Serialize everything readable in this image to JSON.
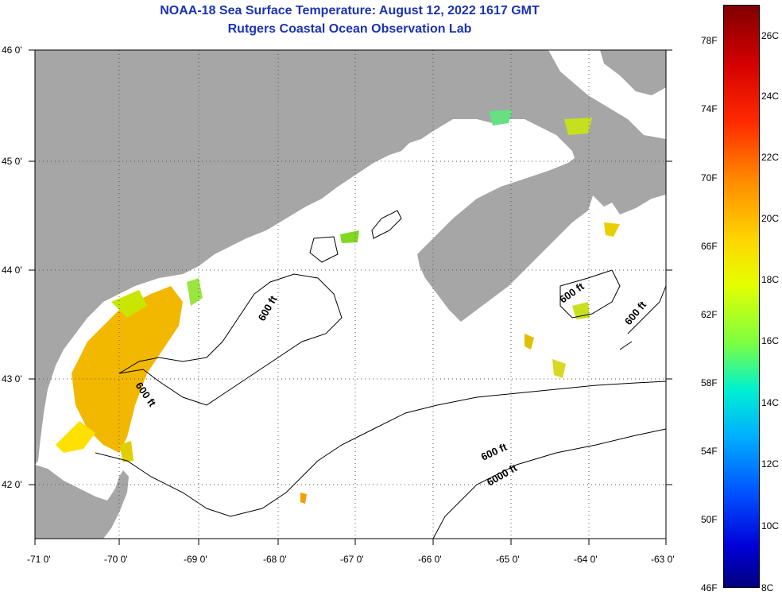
{
  "header": {
    "title": "NOAA-18 Sea Surface Temperature:  August 12, 2022 1617 GMT",
    "subtitle": "Rutgers Coastal Ocean Observation Lab"
  },
  "map": {
    "lat_labels": [
      "46 0'",
      "45 0'",
      "44 0'",
      "43 0'",
      "42 0'"
    ],
    "lon_labels": [
      "-71 0'",
      "-70 0'",
      "-69 0'",
      "-68 0'",
      "-67 0'",
      "-66 0'",
      "-65 0'",
      "-64 0'",
      "-63 0'"
    ],
    "contour_labels": [
      "600 ft",
      "600 ft",
      "600 ft",
      "600 ft",
      "600 ft",
      "6000 ft"
    ],
    "colors": {
      "land": "#a6a6a6",
      "water": "#ffffff",
      "title": "#1a33b5"
    }
  },
  "colorbar": {
    "fahrenheit": [
      "78F",
      "74F",
      "70F",
      "66F",
      "62F",
      "58F",
      "54F",
      "50F",
      "46F"
    ],
    "celsius": [
      "26C",
      "24C",
      "22C",
      "20C",
      "18C",
      "16C",
      "14C",
      "12C",
      "10C",
      "8C"
    ]
  }
}
